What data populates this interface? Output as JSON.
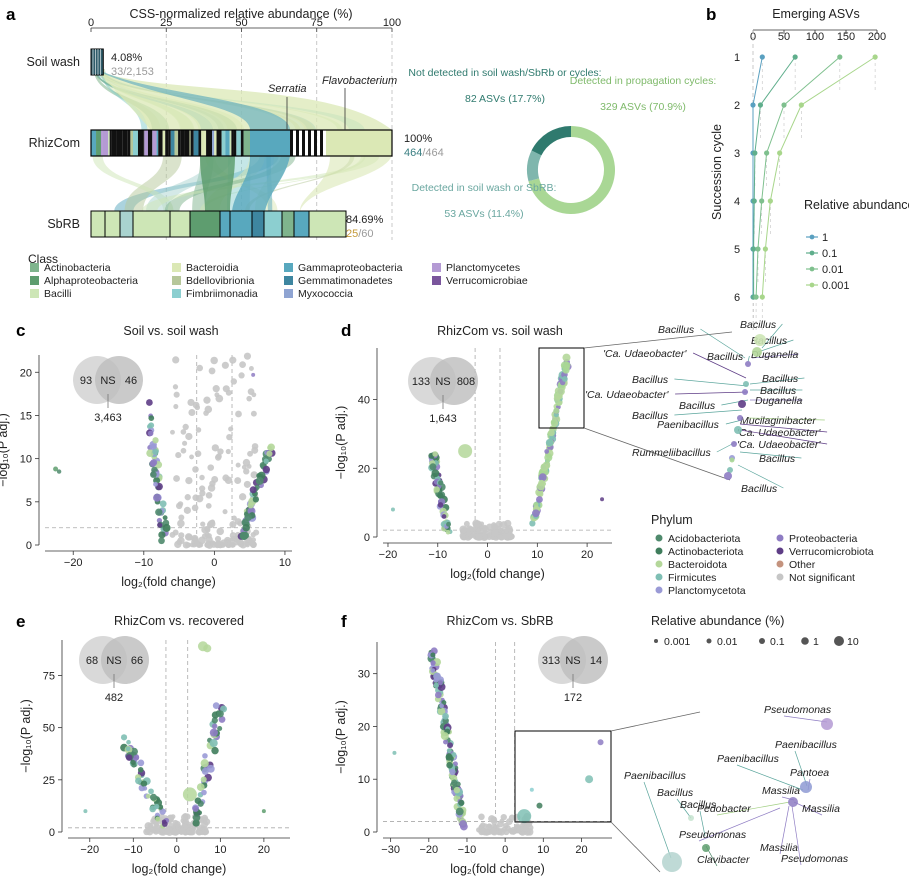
{
  "colors": {
    "Acidobacteriota": "#4f8a6d",
    "Actinobacteriota": "#3f7d5c",
    "Bacteroidota": "#b4d79a",
    "Firmicutes": "#7fbfb4",
    "Planctomycetota": "#9a9ad6",
    "Proteobacteria": "#8e7cc3",
    "Verrucomicrobiota": "#5e3d86",
    "Other": "#c4937e",
    "Not significant": "#c6c6c6",
    "teal": "#3a7f82",
    "green": "#7fba6b",
    "gold": "#c49a3a",
    "gray": "#9a9a9a"
  },
  "panel_a": {
    "letter": "a",
    "title": "CSS-normalized relative abundance (%)",
    "ticks": [
      "0",
      "25",
      "50",
      "75",
      "100"
    ],
    "rows": [
      {
        "name": "Soil wash",
        "pct": "4.08%",
        "num": "33",
        "den": "/2,153",
        "extent": 0.0408
      },
      {
        "name": "RhizCom",
        "pct": "100%",
        "num": "464",
        "den": "/464",
        "extent": 1.0
      },
      {
        "name": "SbRB",
        "pct": "84.69%",
        "num": "25",
        "den": "/60",
        "extent": 0.8469
      }
    ],
    "genus_labels": [
      "Serratia",
      "Flavobacterium"
    ],
    "legend_title": "Class",
    "classes": [
      {
        "name": "Actinobacteria",
        "color": "#7fb48d"
      },
      {
        "name": "Alphaproteobacteria",
        "color": "#5e9d6f"
      },
      {
        "name": "Bacilli",
        "color": "#cde6b6"
      },
      {
        "name": "Bacteroidia",
        "color": "#dbe8b5"
      },
      {
        "name": "Bdellovibrionia",
        "color": "#b6c79a"
      },
      {
        "name": "Fimbriimonadia",
        "color": "#8ccfd0"
      },
      {
        "name": "Gammaproteobacteria",
        "color": "#58a8be"
      },
      {
        "name": "Gemmatimonadetes",
        "color": "#3e86a0"
      },
      {
        "name": "Myxococcia",
        "color": "#8fa4d2"
      },
      {
        "name": "Planctomycetes",
        "color": "#b49ad4"
      },
      {
        "name": "Verrucomicrobiae",
        "color": "#7a559c"
      }
    ]
  },
  "donut": {
    "slices": [
      {
        "label": "Detected in propagation cycles:",
        "sub": "329 ASVs (70.9%)",
        "value": 70.9,
        "color": "#a9d795"
      },
      {
        "label": "Detected in soil wash or SbRB:",
        "sub": "53 ASVs (11.4%)",
        "value": 11.4,
        "color": "#7fb6ad"
      },
      {
        "label": "Not detected in soil wash/SbRb or cycles:",
        "sub": "82 ASVs (17.7%)",
        "value": 17.7,
        "color": "#2f7a6e"
      }
    ]
  },
  "panel_b": {
    "letter": "b",
    "title": "Emerging ASVs",
    "xticks": [
      "0",
      "50",
      "100",
      "150",
      "200"
    ],
    "yticks": [
      "1",
      "2",
      "3",
      "4",
      "5",
      "6"
    ],
    "ylabel": "Succession cycle",
    "legend_title": "Relative abundance (%)",
    "series": [
      {
        "name": "1",
        "color": "#5aa0c0",
        "values": [
          15,
          0,
          0,
          0,
          0,
          0
        ]
      },
      {
        "name": "0.1",
        "color": "#5fae8c",
        "values": [
          68,
          12,
          3,
          2,
          1,
          1
        ]
      },
      {
        "name": "0.01",
        "color": "#7fc08e",
        "values": [
          140,
          50,
          22,
          14,
          8,
          5
        ]
      },
      {
        "name": "0.001",
        "color": "#a8d68b",
        "values": [
          197,
          78,
          43,
          28,
          20,
          15
        ]
      }
    ]
  },
  "volcanos": {
    "c": {
      "letter": "c",
      "title": "Soil vs. soil wash",
      "xlabel": "log₂(fold change)",
      "xticks": [
        "−20",
        "−10",
        "0",
        "10"
      ],
      "yticks": [
        "0",
        "5",
        "10",
        "15",
        "20"
      ],
      "venn": {
        "left": "93",
        "mid": "NS",
        "right": "46",
        "below": "3,463"
      }
    },
    "d": {
      "letter": "d",
      "title": "RhizCom vs. soil wash",
      "xlabel": "log₂(fold change)",
      "xticks": [
        "−20",
        "−10",
        "0",
        "10",
        "20"
      ],
      "yticks": [
        "0",
        "20",
        "40"
      ],
      "venn": {
        "left": "133",
        "mid": "NS",
        "right": "808",
        "below": "1,643"
      }
    },
    "e": {
      "letter": "e",
      "title": "RhizCom vs. recovered",
      "xlabel": "log₂(fold change)",
      "xticks": [
        "−20",
        "−10",
        "0",
        "10",
        "20"
      ],
      "yticks": [
        "0",
        "25",
        "50",
        "75"
      ],
      "venn": {
        "left": "68",
        "mid": "NS",
        "right": "66",
        "below": "482"
      }
    },
    "f": {
      "letter": "f",
      "title": "RhizCom vs. SbRB",
      "xlabel": "log₂(fold change)",
      "xticks": [
        "−30",
        "−20",
        "−10",
        "0",
        "10",
        "20"
      ],
      "yticks": [
        "0",
        "10",
        "20",
        "30"
      ],
      "venn": {
        "left": "313",
        "mid": "NS",
        "right": "14",
        "below": "172"
      }
    }
  },
  "ylabel_volcano": "−log₁₀(P adj.)",
  "phylum_legend": {
    "title": "Phylum",
    "items": [
      "Acidobacteriota",
      "Actinobacteriota",
      "Bacteroidota",
      "Firmicutes",
      "Planctomycetota",
      "Proteobacteria",
      "Verrucomicrobiota",
      "Other",
      "Not significant"
    ]
  },
  "size_legend": {
    "title": "Relative abundance (%)",
    "items": [
      "0.001",
      "0.01",
      "0.1",
      "1",
      "10"
    ]
  },
  "d_labels": [
    {
      "text": "Bacillus",
      "color": "#5aa59c"
    },
    {
      "text": "Bacillus",
      "color": "#5aa59c"
    },
    {
      "text": "Bacillus",
      "color": "#5aa59c"
    },
    {
      "text": "'Ca. Udaeobacter'",
      "color": "#5e3d86"
    },
    {
      "text": "Bacillus",
      "color": "#5aa59c"
    },
    {
      "text": "Duganella",
      "color": "#8e7cc3"
    },
    {
      "text": "Bacillus",
      "color": "#5aa59c"
    },
    {
      "text": "Bacillus",
      "color": "#5aa59c"
    },
    {
      "text": "Bacillus",
      "color": "#5aa59c"
    },
    {
      "text": "'Ca. Udaeobacter'",
      "color": "#5e3d86"
    },
    {
      "text": "Bacillus",
      "color": "#5aa59c"
    },
    {
      "text": "Duganella",
      "color": "#8e7cc3"
    },
    {
      "text": "Bacillus",
      "color": "#5aa59c"
    },
    {
      "text": "Mucilaginibacter",
      "color": "#a2cf83"
    },
    {
      "text": "Paenibacillus",
      "color": "#5aa59c"
    },
    {
      "text": "'Ca. Udaeobacter'",
      "color": "#5e3d86"
    },
    {
      "text": "'Ca. Udaeobacter'",
      "color": "#5e3d86"
    },
    {
      "text": "Rummeliibacillus",
      "color": "#5aa59c"
    },
    {
      "text": "Bacillus",
      "color": "#5aa59c"
    },
    {
      "text": "Bacillus",
      "color": "#5aa59c"
    }
  ],
  "f_labels": [
    {
      "text": "Pseudomonas",
      "color": "#8e7cc3"
    },
    {
      "text": "Paenibacillus",
      "color": "#5aa59c"
    },
    {
      "text": "Paenibacillus",
      "color": "#5aa59c"
    },
    {
      "text": "Pantoea",
      "color": "#8e7cc3"
    },
    {
      "text": "Paenibacillus",
      "color": "#5aa59c"
    },
    {
      "text": "Bacillus",
      "color": "#5aa59c"
    },
    {
      "text": "Massilia",
      "color": "#8e7cc3"
    },
    {
      "text": "Pedobacter",
      "color": "#a2cf83"
    },
    {
      "text": "Massilia",
      "color": "#8e7cc3"
    },
    {
      "text": "Bacillus",
      "color": "#5aa59c"
    },
    {
      "text": "Pseudomonas",
      "color": "#8e7cc3"
    },
    {
      "text": "Massilia",
      "color": "#8e7cc3"
    },
    {
      "text": "Pseudomonas",
      "color": "#8e7cc3"
    },
    {
      "text": "Clavibacter",
      "color": "#3f7d5c"
    }
  ],
  "chart_data": [
    {
      "type": "bar",
      "title": "CSS-normalized relative abundance (%)",
      "categories": [
        "Soil wash",
        "RhizCom",
        "SbRB"
      ],
      "values": [
        4.08,
        100,
        84.69
      ],
      "ylim": [
        0,
        100
      ]
    },
    {
      "type": "pie",
      "categories": [
        "Detected in propagation cycles",
        "Detected in soil wash or SbRB",
        "Not detected in soil wash/SbRb or cycles"
      ],
      "values": [
        70.9,
        11.4,
        17.7
      ]
    },
    {
      "type": "line",
      "title": "Emerging ASVs",
      "ylabel": "Succession cycle",
      "x": [
        1,
        2,
        3,
        4,
        5,
        6
      ],
      "series": [
        {
          "name": "1",
          "values": [
            15,
            0,
            0,
            0,
            0,
            0
          ]
        },
        {
          "name": "0.1",
          "values": [
            68,
            12,
            3,
            2,
            1,
            1
          ]
        },
        {
          "name": "0.01",
          "values": [
            140,
            50,
            22,
            14,
            8,
            5
          ]
        },
        {
          "name": "0.001",
          "values": [
            197,
            78,
            43,
            28,
            20,
            15
          ]
        }
      ],
      "xlim": [
        0,
        200
      ]
    },
    {
      "type": "scatter",
      "title": "Soil vs. soil wash",
      "xlabel": "log2(fold change)",
      "xlim": [
        -24,
        11
      ],
      "ylim": [
        0,
        22
      ],
      "ns": 3463,
      "up": 46,
      "down": 93
    },
    {
      "type": "scatter",
      "title": "RhizCom vs. soil wash",
      "xlabel": "log2(fold change)",
      "xlim": [
        -21,
        25
      ],
      "ylim": [
        0,
        55
      ],
      "ns": 1643,
      "up": 808,
      "down": 133
    },
    {
      "type": "scatter",
      "title": "RhizCom vs. recovered",
      "xlabel": "log2(fold change)",
      "xlim": [
        -25,
        26
      ],
      "ylim": [
        0,
        92
      ],
      "ns": 482,
      "up": 66,
      "down": 68
    },
    {
      "type": "scatter",
      "title": "RhizCom vs. SbRB",
      "xlabel": "log2(fold change)",
      "xlim": [
        -32,
        28
      ],
      "ylim": [
        0,
        36
      ],
      "ns": 172,
      "up": 14,
      "down": 313
    }
  ]
}
